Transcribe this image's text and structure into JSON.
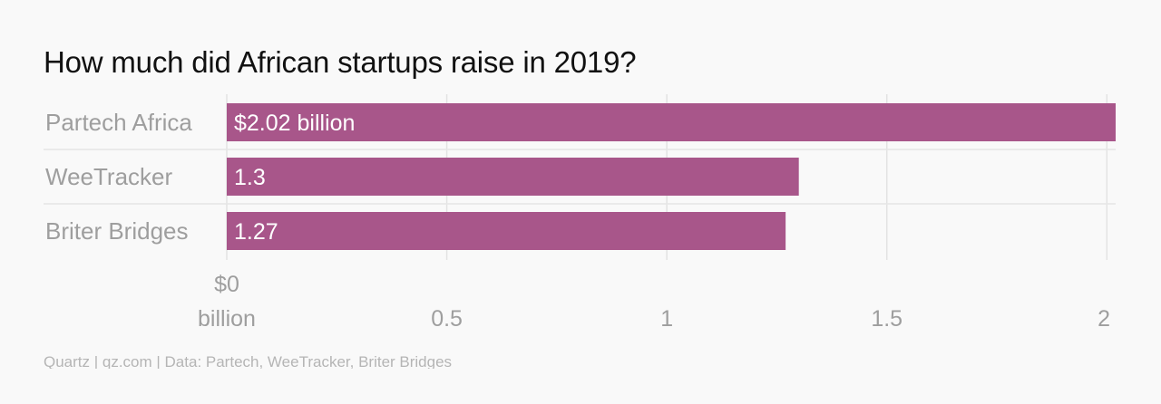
{
  "chart_data": {
    "type": "bar",
    "orientation": "horizontal",
    "title": "How much did African startups raise in 2019?",
    "categories": [
      "Partech Africa",
      "WeeTracker",
      "Briter Bridges"
    ],
    "values": [
      2.02,
      1.3,
      1.27
    ],
    "data_labels": [
      "$2.02 billion",
      "1.3",
      "1.27"
    ],
    "x_ticks": [
      0,
      0.5,
      1,
      1.5,
      2
    ],
    "x_tick_labels": [
      "$0 billion",
      "0.5",
      "1",
      "1.5",
      "2"
    ],
    "xlim": [
      0,
      2.02
    ],
    "xlabel": "",
    "ylabel": "",
    "grid": true,
    "bar_color": "#a8568a",
    "source": "Quartz | qz.com | Data: Partech, WeeTracker, Briter Bridges"
  }
}
